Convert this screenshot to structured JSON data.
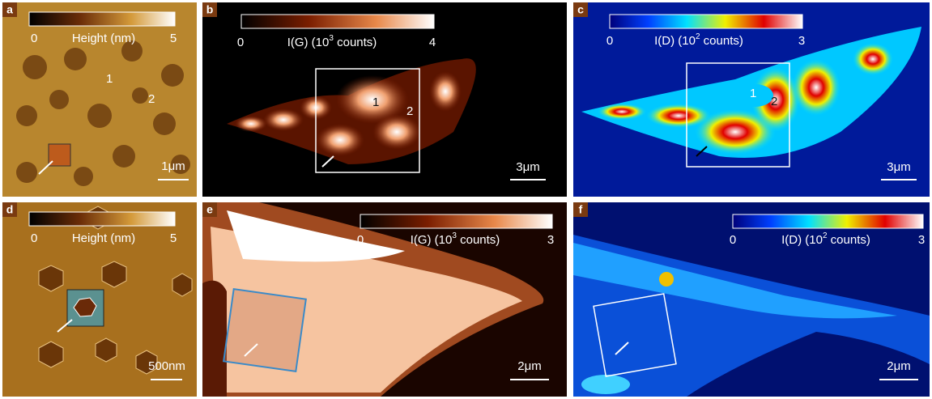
{
  "panels": [
    {
      "label": "a",
      "colorbar": {
        "min": 0,
        "max": 5,
        "title": "Height (nm)"
      },
      "scale_bar": "1μm",
      "annotations": [
        "1",
        "2"
      ]
    },
    {
      "label": "b",
      "colorbar": {
        "min": 0,
        "max": 4,
        "title": "I(G) (10",
        "title_sup": "3",
        "title_tail": " counts)"
      },
      "scale_bar": "3μm",
      "annotations": [
        "1",
        "2"
      ]
    },
    {
      "label": "c",
      "colorbar": {
        "min": 0,
        "max": 3,
        "title": "I(D) (10",
        "title_sup": "2",
        "title_tail": " counts)"
      },
      "scale_bar": "3μm",
      "annotations": [
        "1",
        "2"
      ]
    },
    {
      "label": "d",
      "colorbar": {
        "min": 0,
        "max": 5,
        "title": "Height (nm)"
      },
      "scale_bar": "500nm"
    },
    {
      "label": "e",
      "colorbar": {
        "min": 0,
        "max": 3,
        "title": "I(G) (10",
        "title_sup": "3",
        "title_tail": " counts)"
      },
      "scale_bar": "2μm"
    },
    {
      "label": "f",
      "colorbar": {
        "min": 0,
        "max": 3,
        "title": "I(D) (10",
        "title_sup": "2",
        "title_tail": " counts)"
      },
      "scale_bar": "2μm"
    }
  ]
}
